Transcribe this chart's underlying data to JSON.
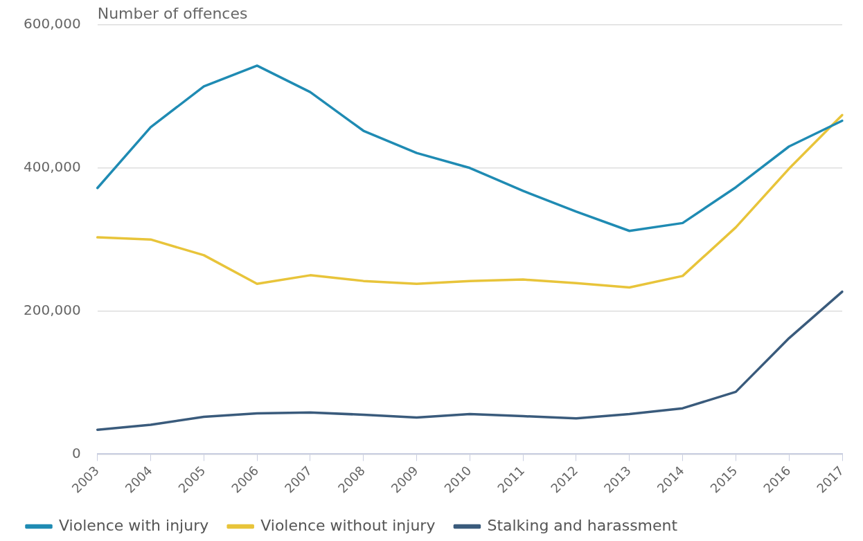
{
  "chart_data": {
    "type": "line",
    "ylabel": "Number of offences",
    "categories": [
      "2003",
      "2004",
      "2005",
      "2006",
      "2007",
      "2008",
      "2009",
      "2010",
      "2011",
      "2012",
      "2013",
      "2014",
      "2015",
      "2016",
      "2017"
    ],
    "series": [
      {
        "name": "Violence with injury",
        "color": "#1f8bb3",
        "values": [
          372000,
          457000,
          514000,
          543000,
          506000,
          452000,
          421000,
          400000,
          368000,
          339000,
          312000,
          323000,
          373000,
          430000,
          466000
        ]
      },
      {
        "name": "Violence without injury",
        "color": "#e8c43a",
        "values": [
          303000,
          300000,
          278000,
          238000,
          250000,
          242000,
          238000,
          242000,
          244000,
          239000,
          233000,
          249000,
          317000,
          399000,
          474000
        ]
      },
      {
        "name": "Stalking and harassment",
        "color": "#3a5b7c",
        "values": [
          34000,
          41000,
          52000,
          57000,
          58000,
          55000,
          51000,
          56000,
          53000,
          50000,
          56000,
          64000,
          87000,
          162000,
          227000
        ]
      }
    ],
    "ylim": [
      0,
      600000
    ],
    "yticks": [
      {
        "value": 0,
        "label": "0"
      },
      {
        "value": 200000,
        "label": "200,000"
      },
      {
        "value": 400000,
        "label": "400,000"
      },
      {
        "value": 600000,
        "label": "600,000"
      }
    ],
    "grid": "y",
    "legend": "bottom",
    "marker": "none",
    "line_style": "solid"
  }
}
